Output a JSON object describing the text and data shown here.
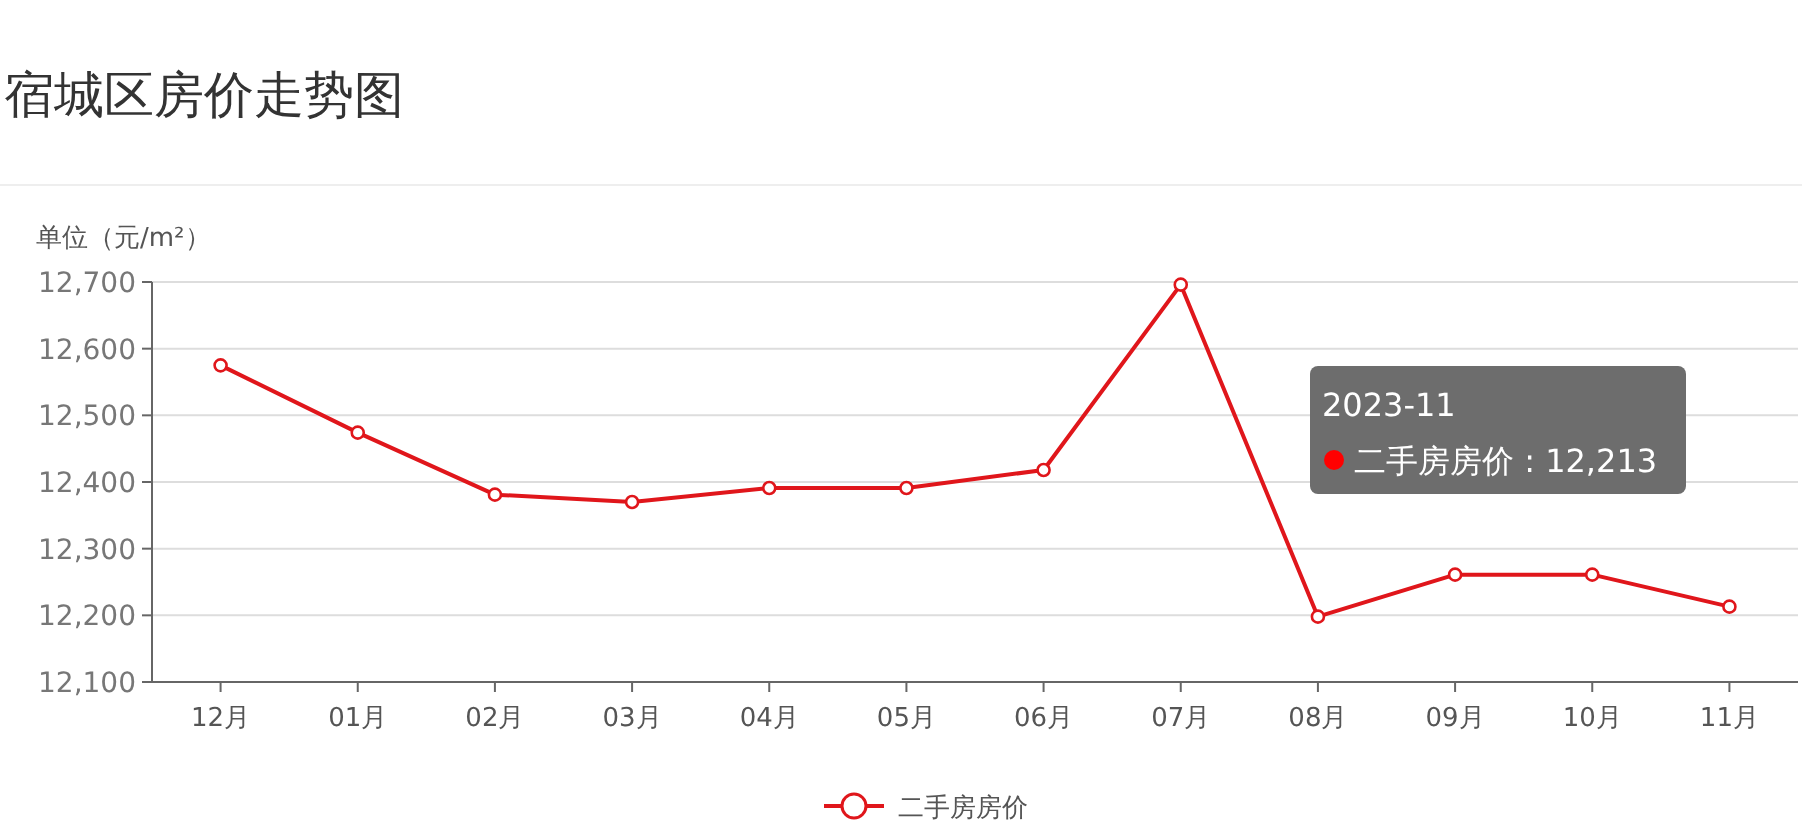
{
  "chart_data": {
    "type": "line",
    "title": "宿城区房价走势图",
    "ylabel": "单位（元/m²）",
    "categories": [
      "12月",
      "01月",
      "02月",
      "03月",
      "04月",
      "05月",
      "06月",
      "07月",
      "08月",
      "09月",
      "10月",
      "11月"
    ],
    "series": [
      {
        "name": "二手房房价",
        "color": "#e0161b",
        "values": [
          12575,
          12474,
          12381,
          12370,
          12391,
          12391,
          12418,
          12696,
          12198,
          12261,
          12261,
          12213
        ]
      }
    ],
    "ylim": [
      12100,
      12700
    ],
    "yticks": [
      {
        "value": 12100,
        "label": "12,100"
      },
      {
        "value": 12200,
        "label": "12,200"
      },
      {
        "value": 12300,
        "label": "12,300"
      },
      {
        "value": 12400,
        "label": "12,400"
      },
      {
        "value": 12500,
        "label": "12,500"
      },
      {
        "value": 12600,
        "label": "12,600"
      },
      {
        "value": 12700,
        "label": "12,700"
      }
    ],
    "annotations": [
      "2023-11",
      "二手房房价 : 12,213"
    ],
    "grid": "y",
    "legend": "bottom",
    "marker": "circle",
    "line_style": "solid"
  }
}
